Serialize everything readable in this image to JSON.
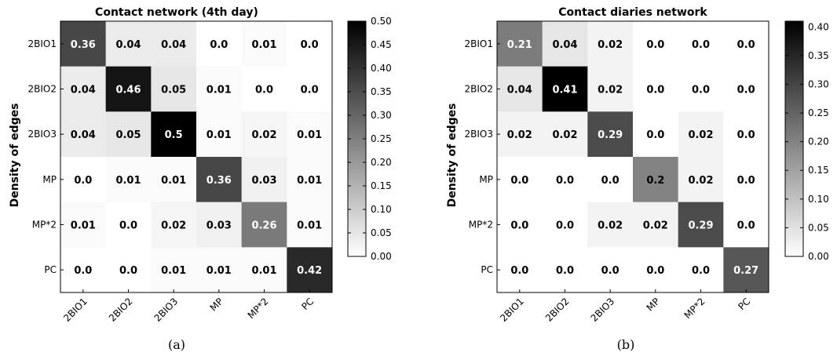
{
  "chart_data": [
    {
      "type": "heatmap",
      "title": "Contact network (4th day)",
      "ylabel": "Density of edges",
      "xlabel": "",
      "caption": "(a)",
      "rows": [
        "2BIO1",
        "2BIO2",
        "2BIO3",
        "MP",
        "MP*2",
        "PC"
      ],
      "cols": [
        "2BIO1",
        "2BIO2",
        "2BIO3",
        "MP",
        "MP*2",
        "PC"
      ],
      "values": [
        [
          "0.36",
          "0.04",
          "0.04",
          "0.0",
          "0.01",
          "0.0"
        ],
        [
          "0.04",
          "0.46",
          "0.05",
          "0.01",
          "0.0",
          "0.0"
        ],
        [
          "0.04",
          "0.05",
          "0.5",
          "0.01",
          "0.02",
          "0.01"
        ],
        [
          "0.0",
          "0.01",
          "0.01",
          "0.36",
          "0.03",
          "0.01"
        ],
        [
          "0.01",
          "0.0",
          "0.02",
          "0.03",
          "0.26",
          "0.01"
        ],
        [
          "0.0",
          "0.0",
          "0.01",
          "0.01",
          "0.01",
          "0.42"
        ]
      ],
      "vmin": 0,
      "vmax": 0.5,
      "colorbar_ticks": [
        "0.00",
        "0.05",
        "0.10",
        "0.15",
        "0.20",
        "0.25",
        "0.30",
        "0.35",
        "0.40",
        "0.45",
        "0.50"
      ],
      "colormap": "white-to-black",
      "legend_position": "right"
    },
    {
      "type": "heatmap",
      "title": "Contact diaries network",
      "ylabel": "Density of edges",
      "xlabel": "",
      "caption": "(b)",
      "rows": [
        "2BIO1",
        "2BIO2",
        "2BIO3",
        "MP",
        "MP*2",
        "PC"
      ],
      "cols": [
        "2BIO1",
        "2BIO2",
        "2BIO3",
        "MP",
        "MP*2",
        "PC"
      ],
      "values": [
        [
          "0.21",
          "0.04",
          "0.02",
          "0.0",
          "0.0",
          "0.0"
        ],
        [
          "0.04",
          "0.41",
          "0.02",
          "0.0",
          "0.0",
          "0.0"
        ],
        [
          "0.02",
          "0.02",
          "0.29",
          "0.0",
          "0.02",
          "0.0"
        ],
        [
          "0.0",
          "0.0",
          "0.0",
          "0.2",
          "0.02",
          "0.0"
        ],
        [
          "0.0",
          "0.0",
          "0.02",
          "0.02",
          "0.29",
          "0.0"
        ],
        [
          "0.0",
          "0.0",
          "0.0",
          "0.0",
          "0.0",
          "0.27"
        ]
      ],
      "vmin": 0,
      "vmax": 0.41,
      "colorbar_ticks": [
        "0.00",
        "0.05",
        "0.10",
        "0.15",
        "0.20",
        "0.25",
        "0.30",
        "0.35",
        "0.40"
      ],
      "colormap": "white-to-black",
      "legend_position": "right"
    }
  ]
}
